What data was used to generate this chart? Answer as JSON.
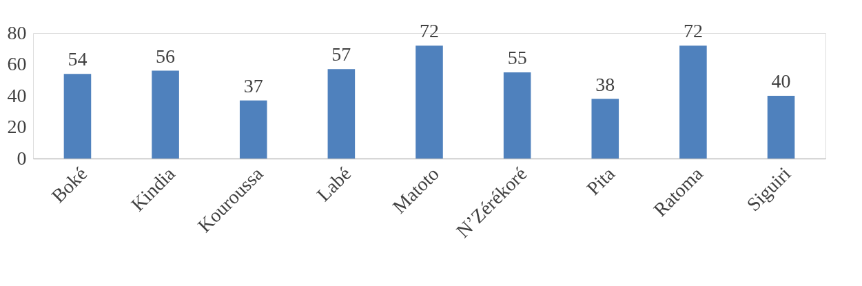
{
  "chart_data": {
    "type": "bar",
    "categories": [
      "Boké",
      "Kindia",
      "Kouroussa",
      "Labé",
      "Matoto",
      "N’Zérékoré",
      "Pita",
      "Ratoma",
      "Siguiri"
    ],
    "values": [
      54,
      56,
      37,
      57,
      72,
      55,
      38,
      72,
      40
    ],
    "color": "#4f81bd",
    "ylim": [
      0,
      80
    ],
    "yticks": [
      0,
      20,
      40,
      60,
      80
    ],
    "grid": false,
    "data_labels": true
  }
}
